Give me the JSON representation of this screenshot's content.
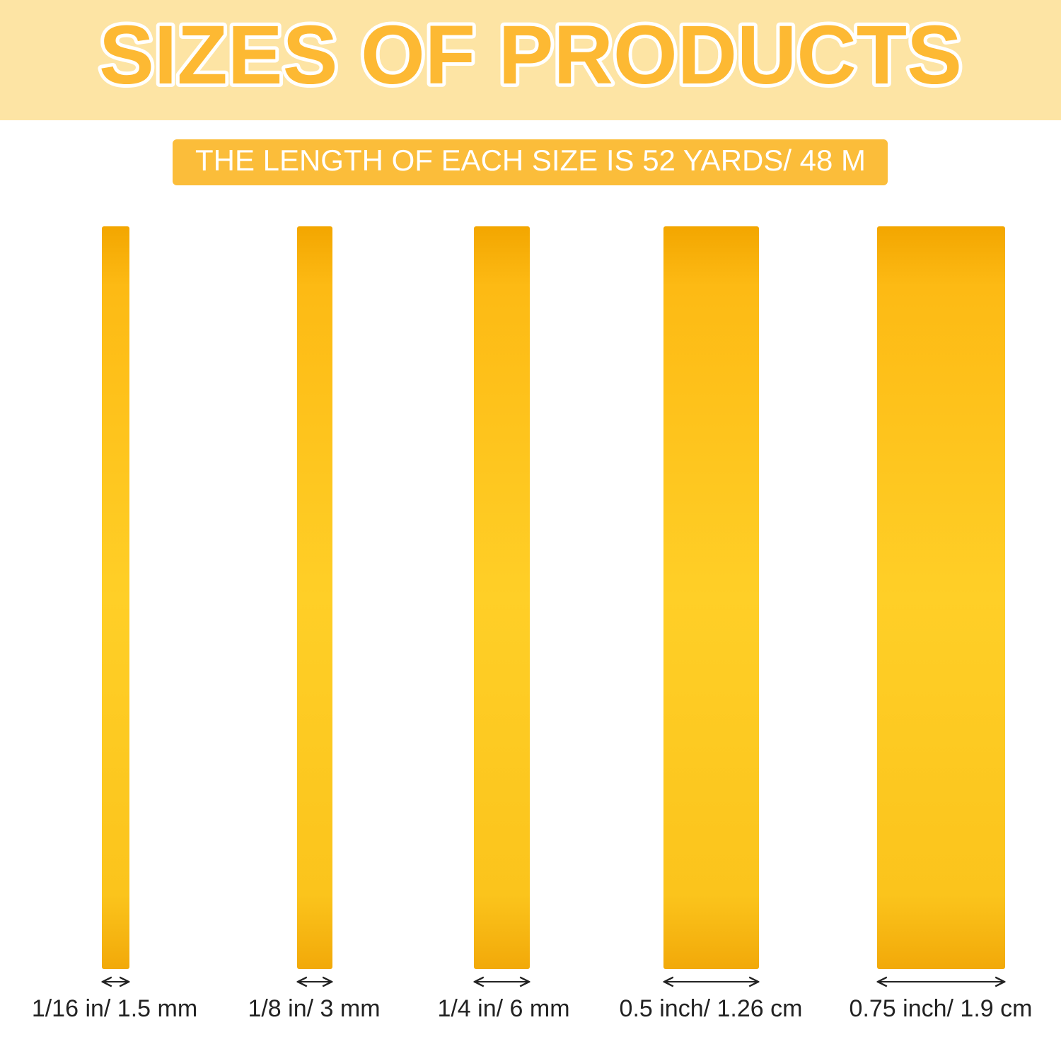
{
  "header": {
    "title": "SIZES OF PRODUCTS",
    "subtitle": "THE LENGTH OF EACH SIZE IS 52 YARDS/ 48 M"
  },
  "sizes": [
    {
      "label": "1/16 in/ 1.5 mm"
    },
    {
      "label": "1/8 in/ 3 mm"
    },
    {
      "label": "1/4 in/ 6 mm"
    },
    {
      "label": "0.5 inch/ 1.26 cm"
    },
    {
      "label": "0.75 inch/ 1.9 cm"
    }
  ]
}
